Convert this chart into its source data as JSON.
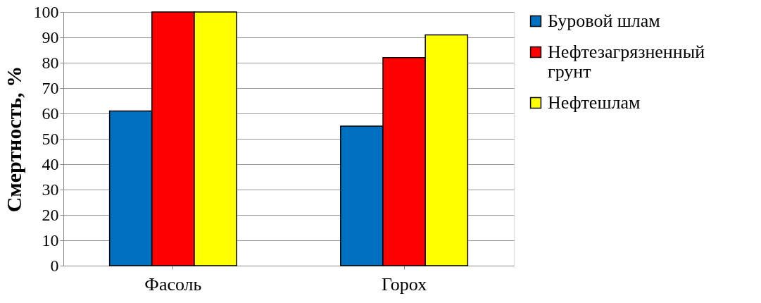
{
  "chart_data": {
    "type": "bar",
    "ylabel": "Смертность, %",
    "categories": [
      "Фасоль",
      "Горох"
    ],
    "series": [
      {
        "name": "Буровой шлам",
        "color": "#0070c0",
        "values": [
          61,
          55
        ]
      },
      {
        "name": "Нефтезагрязненный грунт",
        "color": "#ff0000",
        "values": [
          100,
          82
        ]
      },
      {
        "name": "Нефтешлам",
        "color": "#ffff00",
        "values": [
          100,
          91
        ]
      }
    ],
    "ylim": [
      0,
      100
    ],
    "yticks": [
      0,
      10,
      20,
      30,
      40,
      50,
      60,
      70,
      80,
      90,
      100
    ],
    "grid": "y",
    "legend": "right"
  }
}
